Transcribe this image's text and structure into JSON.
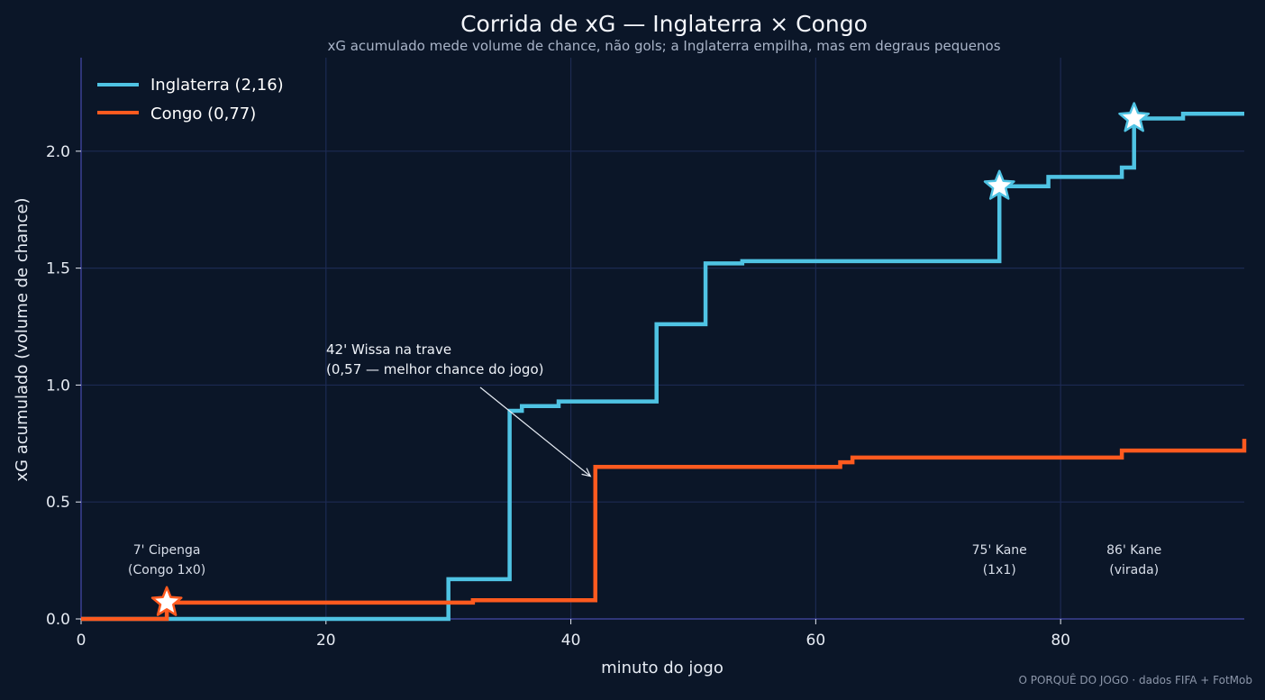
{
  "chart_data": {
    "type": "line",
    "step": true,
    "title": "Corrida de xG — Inglaterra × Congo",
    "subtitle": "xG acumulado mede volume de chance, não gols; a Inglaterra empilha, mas em degraus pequenos",
    "xlabel": "minuto do jogo",
    "ylabel": "xG acumulado (volume de chance)",
    "xlim": [
      0,
      95
    ],
    "ylim": [
      0,
      2.4
    ],
    "xticks": [
      0,
      20,
      40,
      60,
      80
    ],
    "yticks": [
      0.0,
      0.5,
      1.0,
      1.5,
      2.0
    ],
    "xtick_labels": [
      "0",
      "20",
      "40",
      "60",
      "80"
    ],
    "ytick_labels": [
      "0.0",
      "0.5",
      "1.0",
      "1.5",
      "2.0"
    ],
    "grid": true,
    "legend_position": "top-left",
    "series": [
      {
        "name": "Inglaterra (2,16)",
        "color": "#4fc3e3",
        "points": [
          [
            0,
            0
          ],
          [
            30,
            0.17
          ],
          [
            35,
            0.89
          ],
          [
            36,
            0.91
          ],
          [
            39,
            0.93
          ],
          [
            47,
            1.26
          ],
          [
            51,
            1.52
          ],
          [
            54,
            1.53
          ],
          [
            75,
            1.85
          ],
          [
            79,
            1.89
          ],
          [
            85,
            1.93
          ],
          [
            86,
            2.14
          ],
          [
            90,
            2.16
          ],
          [
            95,
            2.16
          ]
        ],
        "goals": [
          {
            "minute": 75,
            "xg": 1.85
          },
          {
            "minute": 86,
            "xg": 2.14
          }
        ]
      },
      {
        "name": "Congo (0,77)",
        "color": "#ff5a1f",
        "points": [
          [
            0,
            0
          ],
          [
            7,
            0.07
          ],
          [
            32,
            0.08
          ],
          [
            42,
            0.65
          ],
          [
            62,
            0.67
          ],
          [
            63,
            0.69
          ],
          [
            85,
            0.72
          ],
          [
            95,
            0.77
          ]
        ],
        "goals": [
          {
            "minute": 7,
            "xg": 0.07
          }
        ]
      }
    ],
    "annotations": {
      "wissa_line1": "42' Wissa na trave",
      "wissa_line2": "(0,57 — melhor chance do jogo)",
      "cipenga_line1": "7' Cipenga",
      "cipenga_line2": "(Congo 1x0)",
      "kane75_line1": "75' Kane",
      "kane75_line2": "(1x1)",
      "kane86_line1": "86' Kane",
      "kane86_line2": "(virada)"
    },
    "credit": "O PORQUÊ DO JOGO · dados FIFA + FotMob"
  }
}
